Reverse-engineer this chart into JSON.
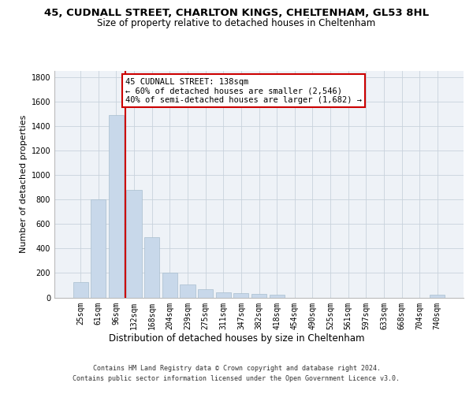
{
  "title1": "45, CUDNALL STREET, CHARLTON KINGS, CHELTENHAM, GL53 8HL",
  "title2": "Size of property relative to detached houses in Cheltenham",
  "xlabel": "Distribution of detached houses by size in Cheltenham",
  "ylabel": "Number of detached properties",
  "categories": [
    "25sqm",
    "61sqm",
    "96sqm",
    "132sqm",
    "168sqm",
    "204sqm",
    "239sqm",
    "275sqm",
    "311sqm",
    "347sqm",
    "382sqm",
    "418sqm",
    "454sqm",
    "490sqm",
    "525sqm",
    "561sqm",
    "597sqm",
    "633sqm",
    "668sqm",
    "704sqm",
    "740sqm"
  ],
  "values": [
    125,
    800,
    1490,
    880,
    490,
    205,
    105,
    65,
    45,
    35,
    30,
    20,
    0,
    0,
    0,
    0,
    0,
    0,
    0,
    0,
    20
  ],
  "bar_color": "#c8d8ea",
  "bar_edge_color": "#a8bece",
  "vline_color": "#cc0000",
  "annotation_line1": "45 CUDNALL STREET: 138sqm",
  "annotation_line2": "← 60% of detached houses are smaller (2,546)",
  "annotation_line3": "40% of semi-detached houses are larger (1,682) →",
  "ylim_max": 1850,
  "yticks": [
    0,
    200,
    400,
    600,
    800,
    1000,
    1200,
    1400,
    1600,
    1800
  ],
  "footnote1": "Contains HM Land Registry data © Crown copyright and database right 2024.",
  "footnote2": "Contains public sector information licensed under the Open Government Licence v3.0.",
  "bg_color": "#eef2f7",
  "grid_color": "#c8d2dc",
  "title1_fontsize": 9.5,
  "title2_fontsize": 8.5,
  "ylabel_fontsize": 8,
  "xlabel_fontsize": 8.5,
  "tick_fontsize": 7,
  "footnote_fontsize": 6,
  "annot_fontsize": 7.5
}
